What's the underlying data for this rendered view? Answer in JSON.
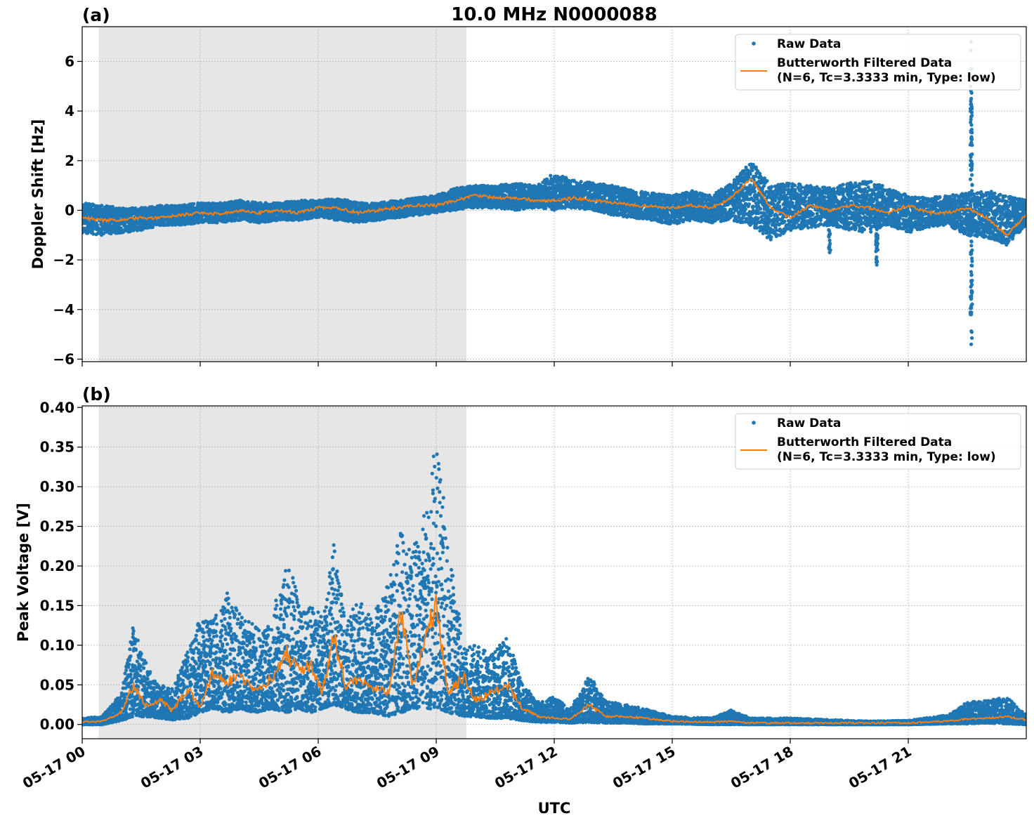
{
  "figure": {
    "title": "10.0 MHz N0000088",
    "xlabel": "UTC"
  },
  "colors": {
    "raw": "#1f77b4",
    "filtered": "#ff7f0e",
    "shade": "#e6e6e6",
    "grid": "#b0b0b0"
  },
  "legend": {
    "raw": "Raw Data",
    "filtered_line1": "Butterworth Filtered Data",
    "filtered_line2": "(N=6, Tc=3.3333 min, Type: low)"
  },
  "chart_data": [
    {
      "type": "scatter",
      "panel_label": "(a)",
      "title": "10.0 MHz N0000088",
      "xlabel": "",
      "ylabel": "Doppler Shift [Hz]",
      "x_unit": "hours UTC since 05-17 00:00",
      "xlim": [
        0,
        24
      ],
      "ylim": [
        -6.1,
        7.4
      ],
      "yticks": [
        -6,
        -4,
        -2,
        0,
        2,
        4,
        6
      ],
      "ytick_labels": [
        "−6",
        "−4",
        "−2",
        "0",
        "2",
        "4",
        "6"
      ],
      "shaded_span": [
        0.42,
        9.77
      ],
      "grid": true,
      "legend_position": "upper right",
      "series": [
        {
          "name": "Raw Data",
          "kind": "points",
          "x": [
            0.0,
            0.5,
            1.0,
            1.5,
            2.0,
            2.5,
            3.0,
            3.5,
            4.0,
            4.5,
            5.0,
            5.5,
            6.0,
            6.5,
            7.0,
            7.5,
            8.0,
            8.5,
            9.0,
            9.5,
            10.0,
            10.5,
            11.0,
            11.5,
            12.0,
            12.5,
            13.0,
            13.5,
            14.0,
            14.5,
            15.0,
            15.5,
            16.0,
            16.5,
            17.0,
            17.5,
            18.0,
            18.5,
            19.0,
            19.5,
            20.0,
            20.5,
            21.0,
            21.5,
            22.0,
            22.5,
            23.0,
            23.5,
            24.0
          ],
          "y_low": [
            -0.9,
            -1.0,
            -0.9,
            -0.8,
            -0.6,
            -0.6,
            -0.5,
            -0.5,
            -0.4,
            -0.5,
            -0.4,
            -0.4,
            -0.3,
            -0.4,
            -0.5,
            -0.4,
            -0.3,
            -0.2,
            -0.1,
            0.0,
            0.1,
            0.1,
            0.0,
            0.1,
            0.0,
            0.1,
            0.0,
            -0.2,
            -0.3,
            -0.4,
            -0.6,
            -0.4,
            -0.5,
            -0.4,
            -0.6,
            -1.2,
            -0.8,
            -0.7,
            -0.6,
            -0.8,
            -0.9,
            -0.6,
            -0.9,
            -0.7,
            -0.6,
            -1.0,
            -1.1,
            -1.4,
            -0.6
          ],
          "y_high": [
            0.3,
            0.2,
            0.1,
            0.1,
            0.2,
            0.2,
            0.3,
            0.3,
            0.4,
            0.3,
            0.3,
            0.4,
            0.4,
            0.5,
            0.3,
            0.3,
            0.4,
            0.5,
            0.6,
            0.9,
            1.0,
            1.0,
            1.1,
            1.0,
            1.5,
            1.2,
            1.1,
            1.0,
            0.8,
            0.7,
            0.6,
            0.8,
            0.6,
            1.1,
            2.0,
            1.0,
            1.1,
            1.0,
            0.9,
            1.1,
            1.2,
            0.9,
            0.6,
            0.5,
            0.6,
            0.7,
            0.8,
            0.6,
            0.4
          ],
          "outliers": [
            {
              "x": 19.0,
              "y": -1.7
            },
            {
              "x": 20.2,
              "y": -1.5
            },
            {
              "x": 20.2,
              "y": -2.2
            },
            {
              "x": 22.6,
              "y": 6.8
            },
            {
              "x": 22.6,
              "y": -5.4
            },
            {
              "x": 22.6,
              "y": 4.5
            },
            {
              "x": 22.6,
              "y": -4.2
            }
          ]
        },
        {
          "name": "Butterworth Filtered Data\n(N=6, Tc=3.3333 min, Type: low)",
          "kind": "line",
          "x": [
            0.0,
            0.5,
            1.0,
            1.5,
            2.0,
            2.5,
            3.0,
            3.5,
            4.0,
            4.5,
            5.0,
            5.5,
            6.0,
            6.5,
            7.0,
            7.5,
            8.0,
            8.5,
            9.0,
            9.5,
            10.0,
            10.5,
            11.0,
            11.5,
            12.0,
            12.5,
            13.0,
            13.5,
            14.0,
            14.5,
            15.0,
            15.5,
            16.0,
            16.5,
            17.0,
            17.5,
            18.0,
            18.5,
            19.0,
            19.5,
            20.0,
            20.5,
            21.0,
            21.5,
            22.0,
            22.5,
            23.0,
            23.5,
            24.0
          ],
          "y": [
            -0.3,
            -0.4,
            -0.4,
            -0.3,
            -0.3,
            -0.2,
            -0.1,
            -0.15,
            0.0,
            -0.1,
            0.0,
            -0.1,
            0.1,
            0.1,
            -0.1,
            0.0,
            0.1,
            0.2,
            0.2,
            0.4,
            0.6,
            0.5,
            0.5,
            0.4,
            0.4,
            0.5,
            0.4,
            0.3,
            0.2,
            0.15,
            0.1,
            0.2,
            0.1,
            0.5,
            1.3,
            0.1,
            -0.3,
            0.2,
            0.0,
            0.2,
            0.1,
            -0.1,
            0.2,
            -0.1,
            -0.1,
            0.1,
            -0.3,
            -1.0,
            -0.2
          ]
        }
      ]
    },
    {
      "type": "scatter",
      "panel_label": "(b)",
      "title": "",
      "xlabel": "UTC",
      "ylabel": "Peak Voltage [V]",
      "x_unit": "hours UTC since 05-17 00:00",
      "xlim": [
        0,
        24
      ],
      "ylim": [
        -0.018,
        0.402
      ],
      "yticks": [
        0.0,
        0.05,
        0.1,
        0.15,
        0.2,
        0.25,
        0.3,
        0.35,
        0.4
      ],
      "ytick_labels": [
        "0.00",
        "0.05",
        "0.10",
        "0.15",
        "0.20",
        "0.25",
        "0.30",
        "0.35",
        "0.40"
      ],
      "xticks": [
        0,
        3,
        6,
        9,
        12,
        15,
        18,
        21
      ],
      "xtick_labels": [
        "05-17 00",
        "05-17 03",
        "05-17 06",
        "05-17 09",
        "05-17 12",
        "05-17 15",
        "05-17 18",
        "05-17 21"
      ],
      "shaded_span": [
        0.42,
        9.77
      ],
      "grid": true,
      "legend_position": "upper right",
      "series": [
        {
          "name": "Raw Data",
          "kind": "points",
          "x": [
            0.0,
            0.5,
            1.0,
            1.3,
            1.6,
            2.0,
            2.3,
            2.7,
            3.0,
            3.3,
            3.7,
            4.0,
            4.4,
            4.8,
            5.2,
            5.5,
            5.8,
            6.1,
            6.4,
            6.7,
            7.0,
            7.4,
            7.8,
            8.1,
            8.4,
            8.8,
            9.0,
            9.3,
            9.7,
            10.0,
            10.4,
            10.8,
            11.2,
            11.6,
            12.0,
            12.4,
            12.9,
            13.3,
            13.8,
            14.3,
            15.0,
            16.0,
            16.5,
            17.0,
            18.0,
            19.0,
            20.0,
            21.0,
            22.0,
            22.5,
            23.0,
            23.5,
            24.0
          ],
          "y_low": [
            0.0,
            0.0,
            0.005,
            0.01,
            0.01,
            0.008,
            0.006,
            0.008,
            0.015,
            0.02,
            0.015,
            0.02,
            0.015,
            0.02,
            0.015,
            0.02,
            0.015,
            0.02,
            0.025,
            0.02,
            0.015,
            0.015,
            0.01,
            0.015,
            0.02,
            0.02,
            0.02,
            0.015,
            0.01,
            0.01,
            0.008,
            0.008,
            0.005,
            0.003,
            0.003,
            0.002,
            0.003,
            0.002,
            0.002,
            0.001,
            0.001,
            0.0,
            0.0,
            0.0,
            0.0,
            0.0,
            0.0,
            0.0,
            0.001,
            0.001,
            0.002,
            0.001,
            0.0
          ],
          "y_high": [
            0.008,
            0.01,
            0.04,
            0.125,
            0.08,
            0.05,
            0.045,
            0.095,
            0.135,
            0.13,
            0.17,
            0.14,
            0.125,
            0.13,
            0.215,
            0.16,
            0.15,
            0.14,
            0.232,
            0.125,
            0.16,
            0.14,
            0.18,
            0.25,
            0.22,
            0.28,
            0.38,
            0.23,
            0.095,
            0.1,
            0.09,
            0.11,
            0.05,
            0.03,
            0.035,
            0.02,
            0.062,
            0.03,
            0.025,
            0.02,
            0.01,
            0.008,
            0.018,
            0.008,
            0.008,
            0.006,
            0.004,
            0.005,
            0.012,
            0.028,
            0.03,
            0.035,
            0.012
          ]
        },
        {
          "name": "Butterworth Filtered Data\n(N=6, Tc=3.3333 min, Type: low)",
          "kind": "line",
          "x": [
            0.0,
            0.5,
            1.0,
            1.3,
            1.6,
            2.0,
            2.3,
            2.7,
            3.0,
            3.3,
            3.7,
            4.0,
            4.4,
            4.8,
            5.2,
            5.5,
            5.8,
            6.1,
            6.4,
            6.7,
            7.0,
            7.4,
            7.8,
            8.1,
            8.4,
            8.8,
            9.0,
            9.3,
            9.7,
            10.0,
            10.4,
            10.8,
            11.2,
            11.6,
            12.0,
            12.4,
            12.9,
            13.3,
            13.8,
            14.3,
            15.0,
            16.0,
            16.5,
            17.0,
            18.0,
            19.0,
            20.0,
            21.0,
            22.0,
            22.5,
            23.0,
            23.5,
            24.0
          ],
          "y": [
            0.003,
            0.004,
            0.015,
            0.05,
            0.025,
            0.03,
            0.018,
            0.045,
            0.02,
            0.065,
            0.055,
            0.06,
            0.045,
            0.055,
            0.09,
            0.07,
            0.075,
            0.04,
            0.11,
            0.05,
            0.055,
            0.045,
            0.04,
            0.14,
            0.05,
            0.12,
            0.15,
            0.04,
            0.06,
            0.03,
            0.04,
            0.05,
            0.02,
            0.01,
            0.008,
            0.007,
            0.025,
            0.01,
            0.01,
            0.008,
            0.004,
            0.003,
            0.004,
            0.002,
            0.002,
            0.002,
            0.002,
            0.002,
            0.004,
            0.007,
            0.008,
            0.01,
            0.006
          ]
        }
      ]
    }
  ]
}
